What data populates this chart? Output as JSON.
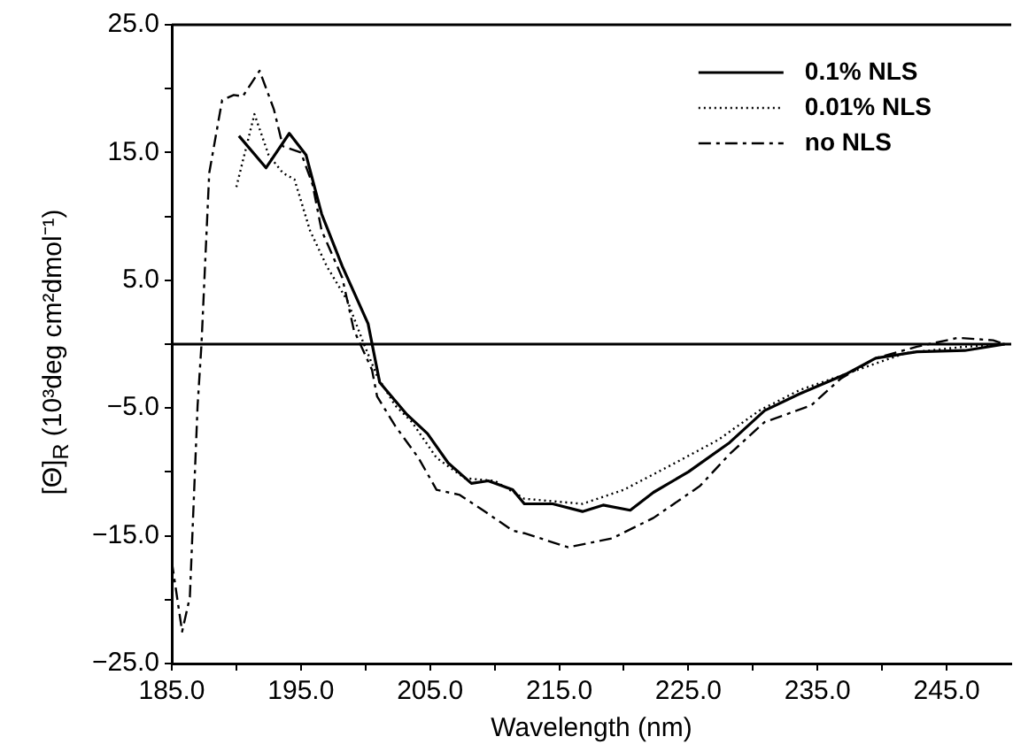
{
  "chart_data": {
    "type": "line",
    "xlabel": "Wavelength (nm)",
    "ylabel": "[Θ]$_{R}$ (10³deg cm²dmol⁻¹)",
    "xlim": [
      185,
      250
    ],
    "ylim": [
      -25,
      25
    ],
    "xticks": [
      {
        "value": 185,
        "label": "185.0"
      },
      {
        "value": 190,
        "label": null
      },
      {
        "value": 195,
        "label": "195.0"
      },
      {
        "value": 200,
        "label": null
      },
      {
        "value": 205,
        "label": "205.0"
      },
      {
        "value": 210,
        "label": null
      },
      {
        "value": 215,
        "label": "215.0"
      },
      {
        "value": 220,
        "label": null
      },
      {
        "value": 225,
        "label": "225.0"
      },
      {
        "value": 230,
        "label": null
      },
      {
        "value": 235,
        "label": "235.0"
      },
      {
        "value": 240,
        "label": null
      },
      {
        "value": 245,
        "label": "245.0"
      }
    ],
    "yticks": [
      {
        "value": -25,
        "label": "−25.0"
      },
      {
        "value": -20,
        "label": null
      },
      {
        "value": -15,
        "label": "−15.0"
      },
      {
        "value": -10,
        "label": null
      },
      {
        "value": -5,
        "label": "−5.0"
      },
      {
        "value": 0,
        "label": null
      },
      {
        "value": 5,
        "label": "5.0"
      },
      {
        "value": 10,
        "label": null
      },
      {
        "value": 15,
        "label": "15.0"
      },
      {
        "value": 20,
        "label": null
      },
      {
        "value": 25,
        "label": "25.0"
      }
    ],
    "grid": false,
    "legend": "top right",
    "marker": "none",
    "ref_lines": [
      {
        "axis": "y",
        "value": 0,
        "color": "#000000",
        "line_style": "solid"
      }
    ],
    "series": [
      {
        "name": "0.1% NLS",
        "color": "#000000",
        "line_style": "solid",
        "x": [
          190.2,
          192.3,
          194.1,
          195.4,
          196.6,
          198.2,
          200.2,
          201.1,
          203.2,
          204.8,
          206.4,
          208.2,
          209.5,
          211.4,
          212.3,
          214.5,
          216.8,
          218.4,
          220.5,
          222.3,
          225,
          228.2,
          230.9,
          233.6,
          237.3,
          239.5,
          242.7,
          246.4,
          249.5
        ],
        "values": [
          16.3,
          13.8,
          16.5,
          14.8,
          10.2,
          6.1,
          1.6,
          -3,
          -5.5,
          -7,
          -9.3,
          -10.9,
          -10.7,
          -11.4,
          -12.5,
          -12.5,
          -13.1,
          -12.6,
          -13,
          -11.6,
          -10,
          -7.7,
          -5.2,
          -3.9,
          -2.3,
          -1.1,
          -0.6,
          -0.5,
          0
        ]
      },
      {
        "name": "0.01% NLS",
        "color": "#000000",
        "line_style": "dotted",
        "x": [
          190,
          191.4,
          192.5,
          193.6,
          194.5,
          195.7,
          197,
          198.6,
          199.8,
          200.9,
          202.3,
          203.6,
          205.5,
          207.7,
          210,
          212.3,
          216.8,
          220,
          223.6,
          227.3,
          230.5,
          233.6,
          237.3,
          241.8,
          246.4,
          249.5
        ],
        "values": [
          12.3,
          18,
          14.8,
          13.4,
          12.9,
          8.9,
          6.1,
          3.4,
          0.2,
          -2.5,
          -4.8,
          -6.1,
          -8.9,
          -10.5,
          -10.7,
          -12.1,
          -12.5,
          -11.4,
          -9.5,
          -7.5,
          -5.2,
          -3.6,
          -2.3,
          -0.7,
          -0.2,
          0
        ]
      },
      {
        "name": "no NLS",
        "color": "#000000",
        "line_style": "dashed",
        "x": [
          185,
          185.8,
          186.4,
          187,
          187.3,
          187.9,
          188.9,
          189.8,
          190.5,
          191.8,
          192.9,
          193.6,
          195,
          195.9,
          196.6,
          198.2,
          199.1,
          200.5,
          200.9,
          202.3,
          204.1,
          205.5,
          207.3,
          209.1,
          211.4,
          212.3,
          215.7,
          219.1,
          222.3,
          225.9,
          228.2,
          230.9,
          234.5,
          236.8,
          239.5,
          242.7,
          245.9,
          248.6,
          249.5
        ],
        "values": [
          -17,
          -22.5,
          -19.8,
          -4.8,
          0,
          13.4,
          19.1,
          19.5,
          19.4,
          21.4,
          18.4,
          15.5,
          15,
          12.5,
          8.9,
          5.2,
          1.1,
          -2,
          -4.1,
          -6.4,
          -8.9,
          -11.4,
          -11.8,
          -13,
          -14.6,
          -14.8,
          -15.9,
          -15.2,
          -13.6,
          -11.1,
          -8.6,
          -6.1,
          -4.8,
          -2.7,
          -1.1,
          -0.2,
          0.5,
          0.3,
          0
        ]
      }
    ]
  }
}
